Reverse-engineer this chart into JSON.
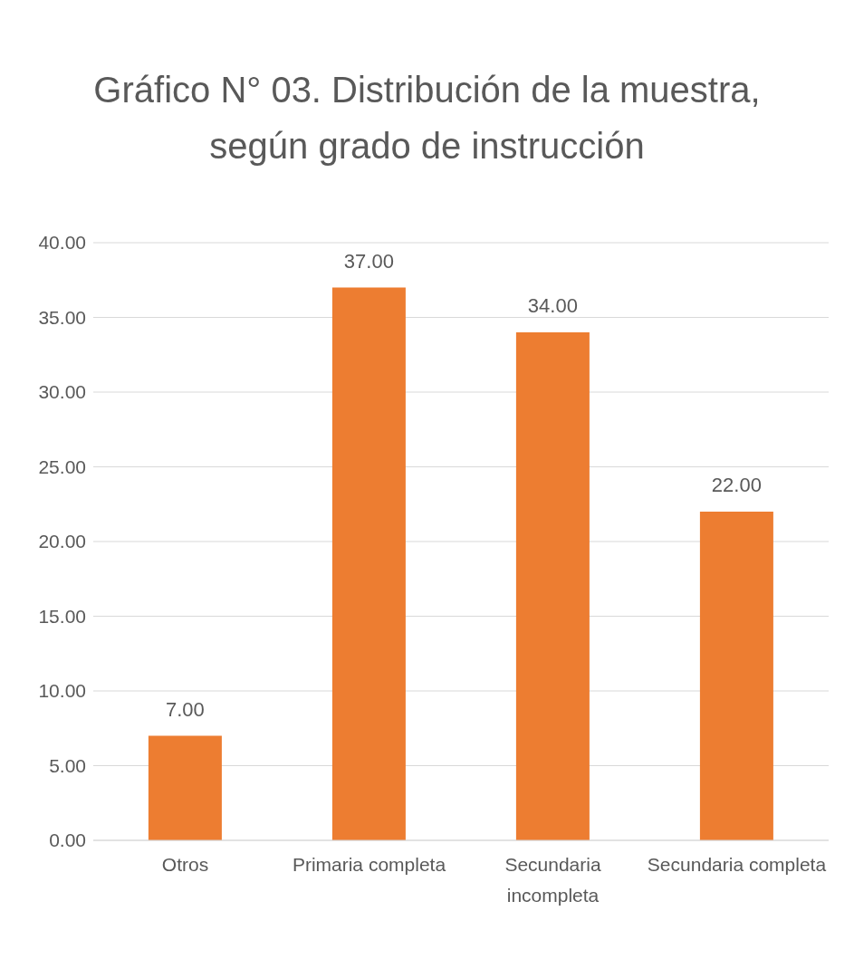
{
  "chart_data": {
    "type": "bar",
    "title": "Gráfico N° 03. Distribución de la muestra, según grado de instrucción",
    "categories": [
      "Otros",
      "Primaria completa",
      "Secundaria incompleta",
      "Secundaria completa"
    ],
    "values": [
      7,
      37,
      34,
      22
    ],
    "color": "#ed7d31",
    "value_labels": [
      "7.00",
      "37.00",
      "34.00",
      "22.00"
    ],
    "ylim": [
      0,
      40
    ],
    "yticks": [
      {
        "value": 0,
        "label": "0.00"
      },
      {
        "value": 5,
        "label": "5.00"
      },
      {
        "value": 10,
        "label": "10.00"
      },
      {
        "value": 15,
        "label": "15.00"
      },
      {
        "value": 20,
        "label": "20.00"
      },
      {
        "value": 25,
        "label": "25.00"
      },
      {
        "value": 30,
        "label": "30.00"
      },
      {
        "value": 35,
        "label": "35.00"
      },
      {
        "value": 40,
        "label": "40.00"
      }
    ],
    "grid": "y",
    "legend": false
  }
}
